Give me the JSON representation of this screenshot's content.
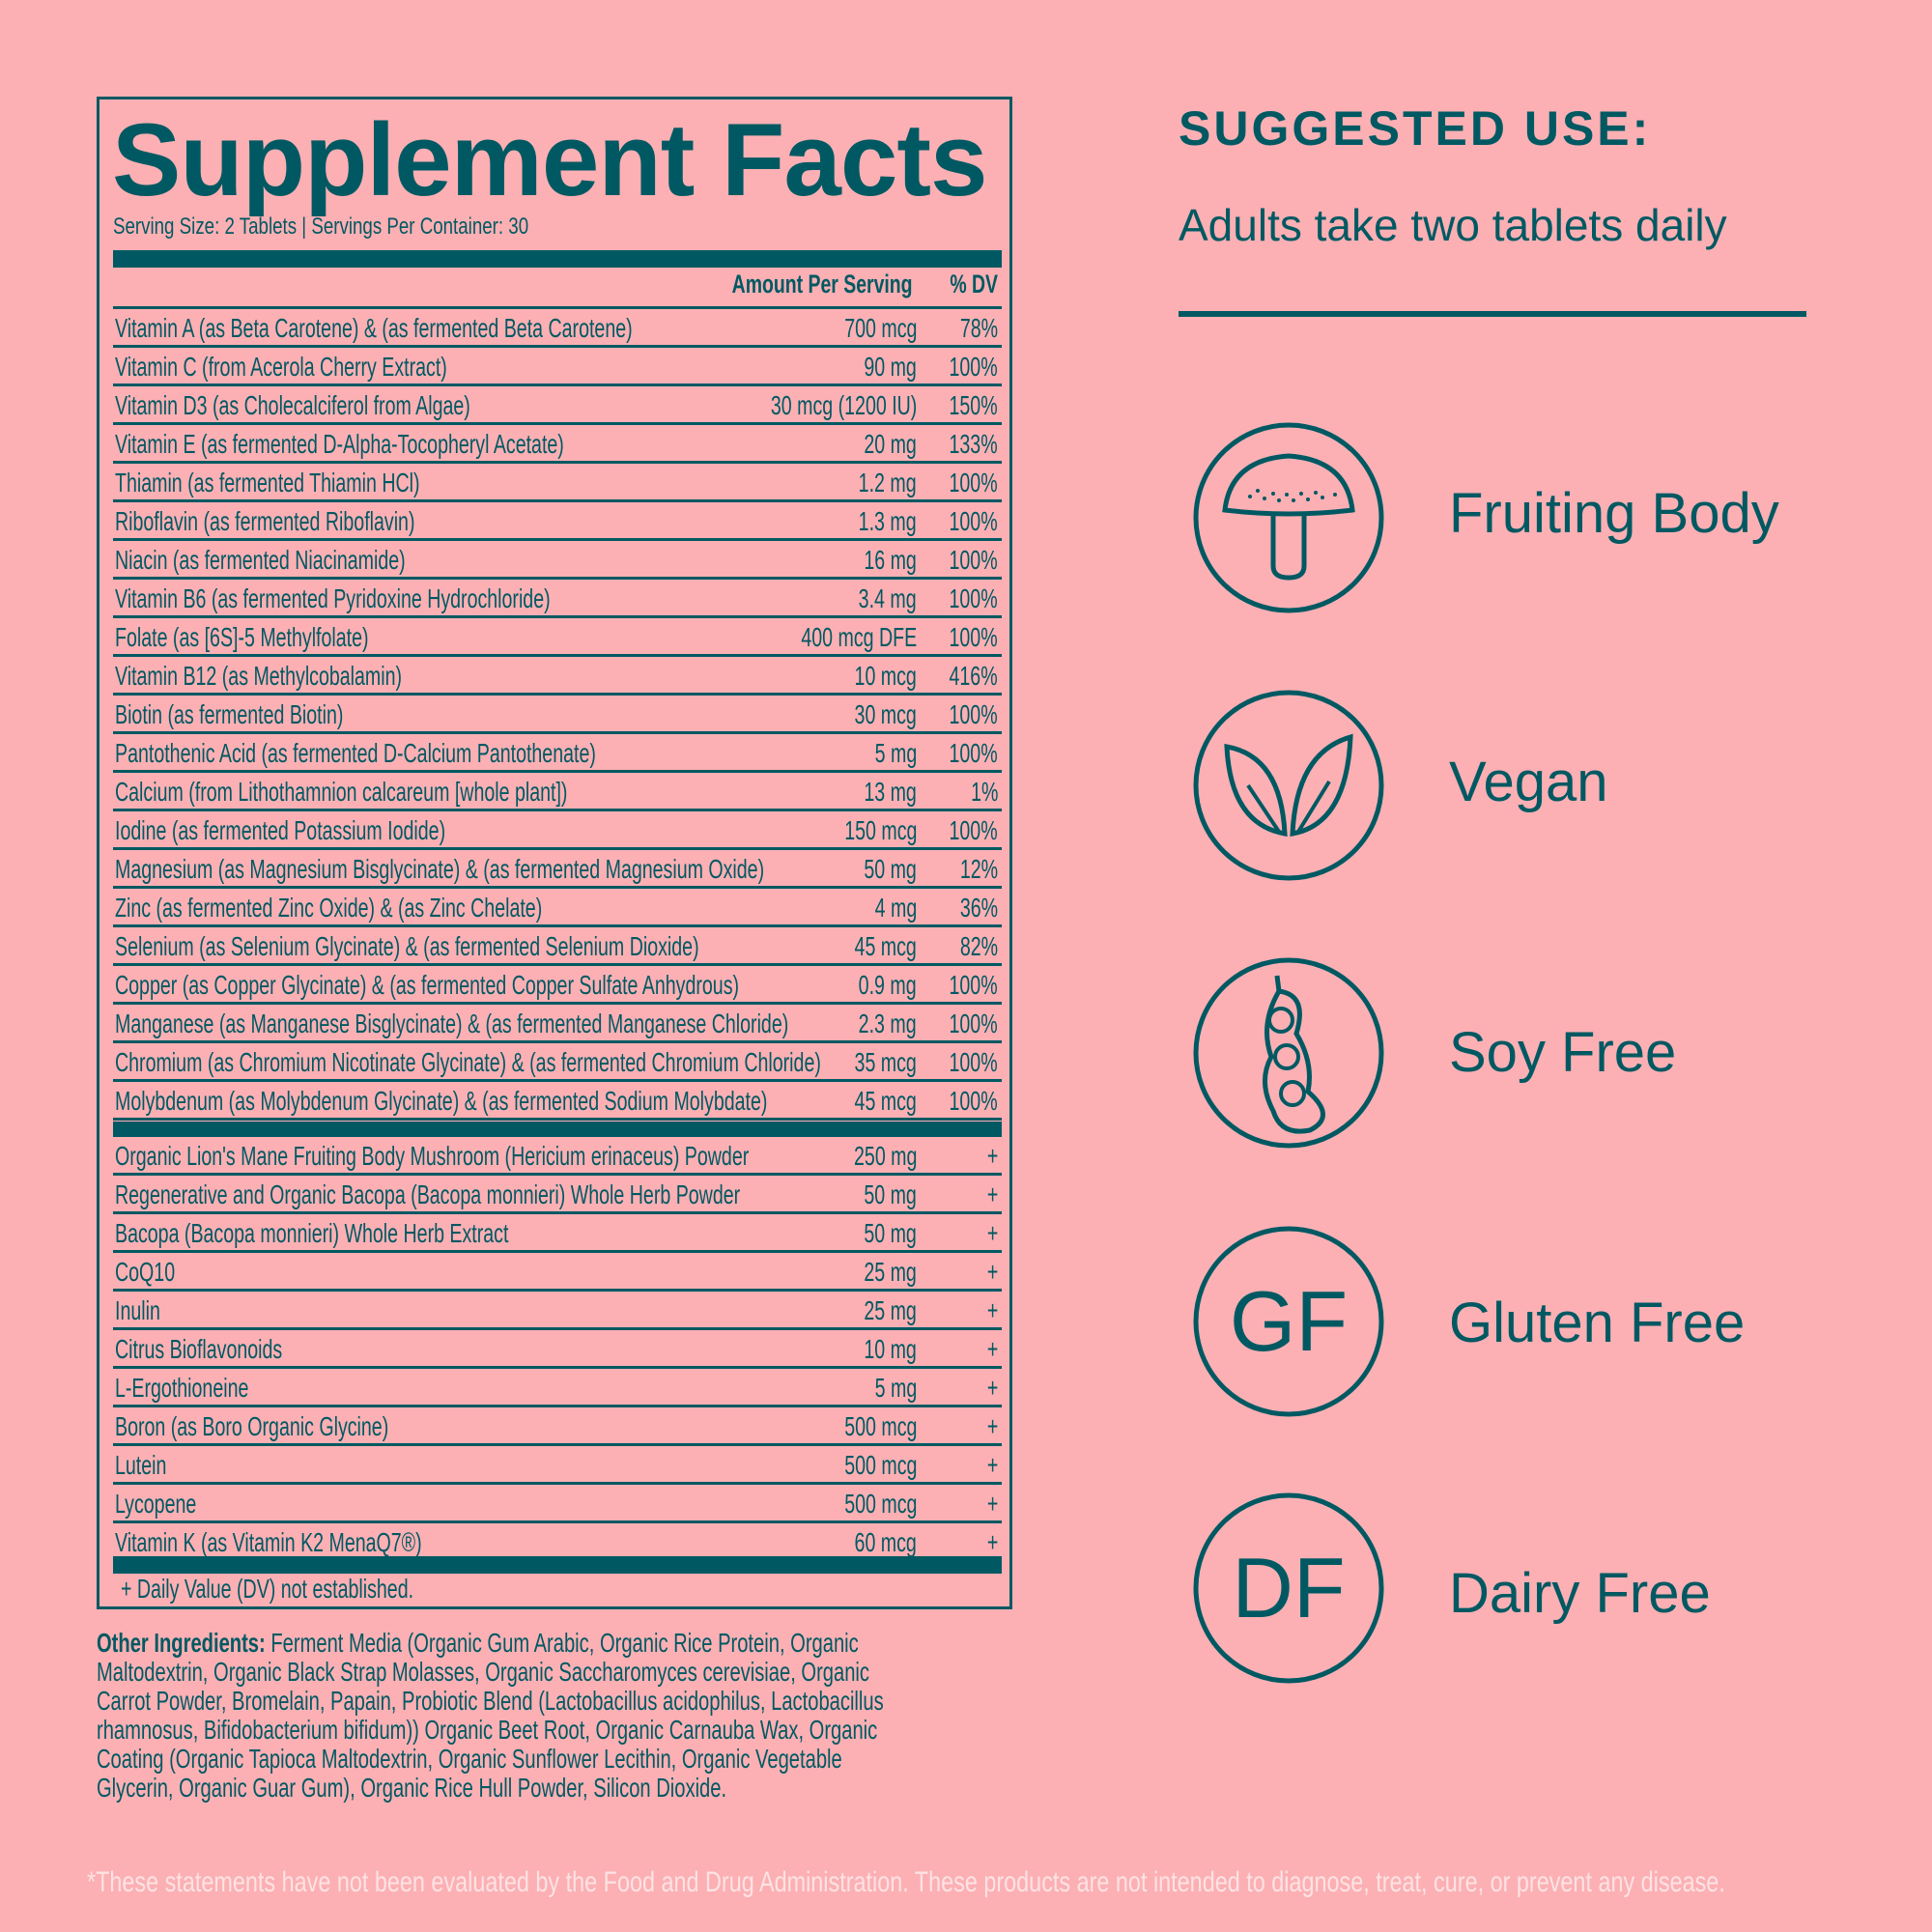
{
  "facts": {
    "title": "Supplement Facts",
    "serving": "Serving Size: 2 Tablets  |  Servings Per Container: 30",
    "header_amount": "Amount Per Serving",
    "header_dv": "% DV",
    "vitamins": [
      {
        "name": "Vitamin A (as Beta Carotene) & (as fermented Beta Carotene)",
        "amount": "700 mcg",
        "dv": "78%"
      },
      {
        "name": "Vitamin C (from Acerola Cherry Extract)",
        "amount": "90 mg",
        "dv": "100%"
      },
      {
        "name": "Vitamin D3 (as Cholecalciferol from Algae)",
        "amount": "30 mcg (1200 IU)",
        "dv": "150%"
      },
      {
        "name": "Vitamin E (as fermented D-Alpha-Tocopheryl Acetate)",
        "amount": "20 mg",
        "dv": "133%"
      },
      {
        "name": "Thiamin (as fermented Thiamin HCl)",
        "amount": "1.2 mg",
        "dv": "100%"
      },
      {
        "name": "Riboflavin (as fermented Riboflavin)",
        "amount": "1.3 mg",
        "dv": "100%"
      },
      {
        "name": "Niacin (as fermented Niacinamide)",
        "amount": "16 mg",
        "dv": "100%"
      },
      {
        "name": "Vitamin B6 (as fermented Pyridoxine Hydrochloride)",
        "amount": "3.4 mg",
        "dv": "100%"
      },
      {
        "name": "Folate (as [6S]-5 Methylfolate)",
        "amount": "400 mcg DFE",
        "dv": "100%"
      },
      {
        "name": "Vitamin B12 (as Methylcobalamin)",
        "amount": "10 mcg",
        "dv": "416%"
      },
      {
        "name": "Biotin (as fermented Biotin)",
        "amount": "30 mcg",
        "dv": "100%"
      },
      {
        "name": "Pantothenic Acid (as fermented D-Calcium Pantothenate)",
        "amount": "5 mg",
        "dv": "100%"
      },
      {
        "name": "Calcium (from Lithothamnion calcareum [whole plant])",
        "amount": "13 mg",
        "dv": "1%"
      },
      {
        "name": "Iodine (as fermented Potassium Iodide)",
        "amount": "150 mcg",
        "dv": "100%"
      },
      {
        "name": "Magnesium (as Magnesium Bisglycinate) &  (as fermented Magnesium Oxide)",
        "amount": "50 mg",
        "dv": "12%"
      },
      {
        "name": "Zinc (as fermented Zinc Oxide) & (as Zinc Chelate)",
        "amount": "4 mg",
        "dv": "36%"
      },
      {
        "name": "Selenium (as Selenium Glycinate) &  (as fermented Selenium Dioxide)",
        "amount": "45 mcg",
        "dv": "82%"
      },
      {
        "name": "Copper (as Copper Glycinate) & (as fermented Copper Sulfate Anhydrous)",
        "amount": "0.9 mg",
        "dv": "100%"
      },
      {
        "name": "Manganese (as Manganese Bisglycinate) & (as fermented Manganese Chloride)",
        "amount": "2.3 mg",
        "dv": "100%"
      },
      {
        "name": "Chromium (as Chromium Nicotinate Glycinate) & (as fermented Chromium Chloride)",
        "amount": "35 mcg",
        "dv": "100%"
      },
      {
        "name": "Molybdenum (as Molybdenum Glycinate) & (as fermented Sodium Molybdate)",
        "amount": "45 mcg",
        "dv": "100%"
      }
    ],
    "others": [
      {
        "name": "Organic Lion's Mane Fruiting Body Mushroom (Hericium erinaceus) Powder",
        "amount": "250 mg",
        "dv": "+"
      },
      {
        "name": "Regenerative and Organic Bacopa (Bacopa monnieri) Whole Herb Powder",
        "amount": "50 mg",
        "dv": "+"
      },
      {
        "name": "Bacopa (Bacopa monnieri) Whole Herb Extract",
        "amount": "50 mg",
        "dv": "+"
      },
      {
        "name": "CoQ10",
        "amount": "25 mg",
        "dv": "+"
      },
      {
        "name": "Inulin",
        "amount": "25 mg",
        "dv": "+"
      },
      {
        "name": "Citrus Bioflavonoids",
        "amount": "10 mg",
        "dv": "+"
      },
      {
        "name": "L-Ergothioneine",
        "amount": "5 mg",
        "dv": "+"
      },
      {
        "name": "Boron (as Boro Organic Glycine)",
        "amount": "500 mcg",
        "dv": "+"
      },
      {
        "name": "Lutein",
        "amount": "500 mcg",
        "dv": "+"
      },
      {
        "name": "Lycopene",
        "amount": "500 mcg",
        "dv": "+"
      },
      {
        "name": "Vitamin K (as Vitamin K2 MenaQ7®)",
        "amount": "60 mcg",
        "dv": "+"
      }
    ],
    "footnote": "+ Daily Value (DV) not established."
  },
  "other_ingredients": {
    "label": "Other Ingredients:",
    "text": "Ferment Media (Organic Gum Arabic, Organic Rice Protein, Organic Maltodextrin, Organic Black Strap Molasses, Organic Saccharomyces cerevisiae, Organic Carrot Powder, Bromelain, Papain, Probiotic Blend (Lactobacillus acidophilus, Lactobacillus rhamnosus, Bifidobacterium bifidum)) Organic Beet Root, Organic Carnauba Wax, Organic Coating (Organic Tapioca Maltodextrin, Organic Sunflower Lecithin, Organic Vegetable Glycerin, Organic Guar Gum), Organic Rice Hull Powder, Silicon Dioxide."
  },
  "suggested_use": {
    "title": "SUGGESTED USE:",
    "text": "Adults take two tablets daily"
  },
  "badges": [
    {
      "icon": "mushroom-icon",
      "label": "Fruiting Body"
    },
    {
      "icon": "leaves-icon",
      "label": "Vegan"
    },
    {
      "icon": "soybean-icon",
      "label": "Soy Free"
    },
    {
      "icon": "gf-icon",
      "text": "GF",
      "label": "Gluten Free"
    },
    {
      "icon": "df-icon",
      "text": "DF",
      "label": "Dairy Free"
    }
  ],
  "disclaimer": "*These statements have not been evaluated by the Food and Drug Administration. These products are not intended to diagnose, treat, cure, or prevent any disease.",
  "colors": {
    "background": "#fcb0b4",
    "ink": "#005962",
    "disclaimer": "#fde3e4"
  }
}
